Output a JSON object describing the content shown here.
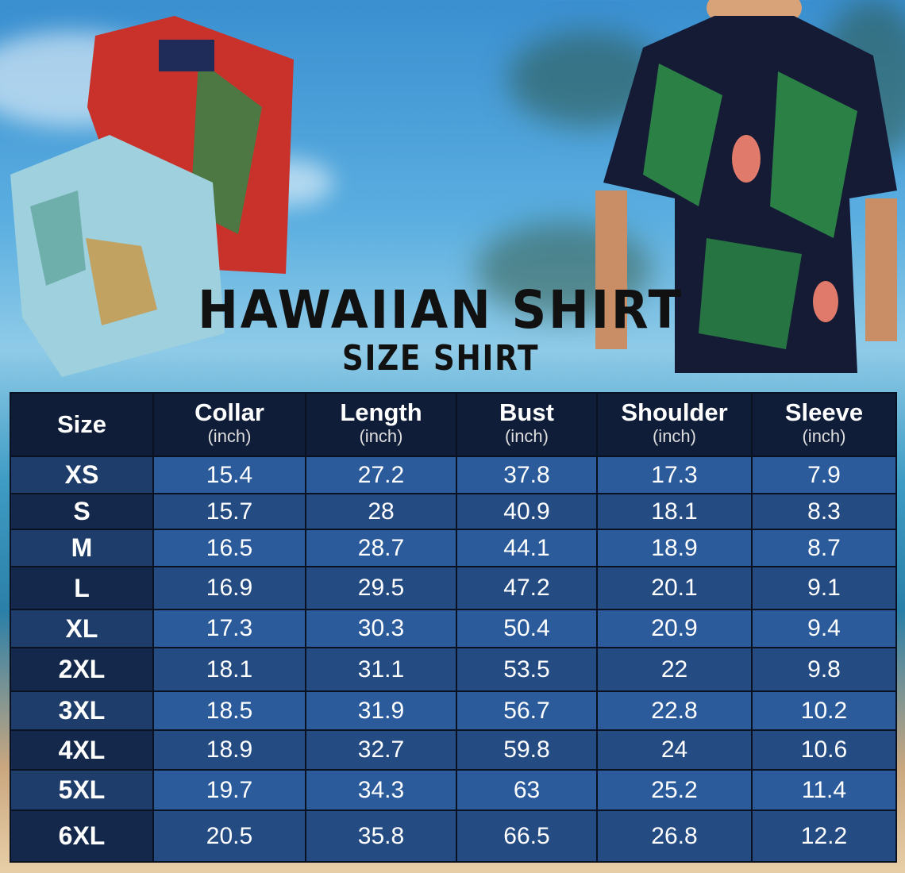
{
  "title": "HAWAIIAN SHIRT",
  "subtitle": "SIZE SHIRT",
  "table": {
    "headers": [
      {
        "label": "Size",
        "unit": ""
      },
      {
        "label": "Collar",
        "unit": "(inch)"
      },
      {
        "label": "Length",
        "unit": "(inch)"
      },
      {
        "label": "Bust",
        "unit": "(inch)"
      },
      {
        "label": "Shoulder",
        "unit": "(inch)"
      },
      {
        "label": "Sleeve",
        "unit": "(inch)"
      }
    ],
    "rows": [
      [
        "XS",
        "15.4",
        "27.2",
        "37.8",
        "17.3",
        "7.9"
      ],
      [
        "S",
        "15.7",
        "28",
        "40.9",
        "18.1",
        "8.3"
      ],
      [
        "M",
        "16.5",
        "28.7",
        "44.1",
        "18.9",
        "8.7"
      ],
      [
        "L",
        "16.9",
        "29.5",
        "47.2",
        "20.1",
        "9.1"
      ],
      [
        "XL",
        "17.3",
        "30.3",
        "50.4",
        "20.9",
        "9.4"
      ],
      [
        "2XL",
        "18.1",
        "31.1",
        "53.5",
        "22",
        "9.8"
      ],
      [
        "3XL",
        "18.5",
        "31.9",
        "56.7",
        "22.8",
        "10.2"
      ],
      [
        "4XL",
        "18.9",
        "32.7",
        "59.8",
        "24",
        "10.6"
      ],
      [
        "5XL",
        "19.7",
        "34.3",
        "63",
        "25.2",
        "11.4"
      ],
      [
        "6XL",
        "20.5",
        "35.8",
        "66.5",
        "26.8",
        "12.2"
      ]
    ]
  },
  "colors": {
    "header": "#0f1d38",
    "row_light": "#2b5b9b",
    "row_dark": "#244b82"
  }
}
